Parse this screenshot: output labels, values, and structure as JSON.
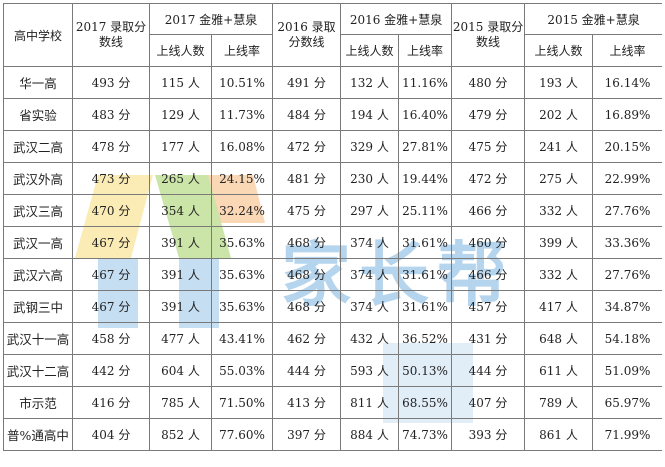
{
  "header": {
    "school_col": "高中学校",
    "groups": [
      {
        "score_label": "2017 录取分数线",
        "jinya_label": "2017 金雅+慧泉"
      },
      {
        "score_label": "2016 录取分数线",
        "jinya_label": "2016 金雅+慧泉"
      },
      {
        "score_label": "2015 录取分数线",
        "jinya_label": "2015 金雅+慧泉"
      }
    ],
    "count_label": "上线人数",
    "rate_label": "上线率"
  },
  "rows": [
    {
      "school": "华一高",
      "c": [
        "493 分",
        "115 人",
        "10.51%",
        "491 分",
        "132 人",
        "11.16%",
        "480 分",
        "193 人",
        "16.14%"
      ]
    },
    {
      "school": "省实验",
      "c": [
        "483 分",
        "129 人",
        "11.73%",
        "484 分",
        "194 人",
        "16.40%",
        "479 分",
        "202 人",
        "16.89%"
      ]
    },
    {
      "school": "武汉二高",
      "c": [
        "478 分",
        "177 人",
        "16.08%",
        "472 分",
        "329 人",
        "27.81%",
        "475 分",
        "241 人",
        "20.15%"
      ]
    },
    {
      "school": "武汉外高",
      "c": [
        "473 分",
        "265 人",
        "24.15%",
        "481 分",
        "230 人",
        "19.44%",
        "472 分",
        "275 人",
        "22.99%"
      ]
    },
    {
      "school": "武汉三高",
      "c": [
        "470 分",
        "354 人",
        "32.24%",
        "475 分",
        "297 人",
        "25.11%",
        "466 分",
        "332 人",
        "27.76%"
      ]
    },
    {
      "school": "武汉一高",
      "c": [
        "467 分",
        "391 人",
        "35.63%",
        "468 分",
        "374 人",
        "31.61%",
        "460 分",
        "399 人",
        "33.36%"
      ]
    },
    {
      "school": "武汉六高",
      "c": [
        "467 分",
        "391 人",
        "35.63%",
        "468 分",
        "374 人",
        "31.61%",
        "466 分",
        "332 人",
        "27.76%"
      ]
    },
    {
      "school": "武钢三中",
      "c": [
        "467 分",
        "391 人",
        "35.63%",
        "468 分",
        "374 人",
        "31.61%",
        "457 分",
        "417 人",
        "34.87%"
      ]
    },
    {
      "school": "武汉十一高",
      "c": [
        "458 分",
        "477 人",
        "43.41%",
        "462 分",
        "432 人",
        "36.52%",
        "431 分",
        "648 人",
        "54.18%"
      ]
    },
    {
      "school": "武汉十二高",
      "c": [
        "442 分",
        "604 人",
        "55.03%",
        "444 分",
        "593 人",
        "50.13%",
        "444 分",
        "611 人",
        "51.09%"
      ]
    },
    {
      "school": "市示范",
      "c": [
        "416 分",
        "785 人",
        "71.50%",
        "413 分",
        "811 人",
        "68.55%",
        "407 分",
        "789 人",
        "65.97%"
      ]
    },
    {
      "school": "普%通高中",
      "c": [
        "404 分",
        "852 人",
        "77.60%",
        "397 分",
        "884 人",
        "74.73%",
        "393 分",
        "861 人",
        "71.99%"
      ]
    }
  ],
  "watermark": {
    "text": "家长帮"
  },
  "colors": {
    "border": "#7a7a7a",
    "watermark_blue": "#5aa0d7",
    "watermark_orange": "#f3a65a",
    "watermark_green": "#8cc63f",
    "watermark_yellow": "#f7d35a"
  }
}
